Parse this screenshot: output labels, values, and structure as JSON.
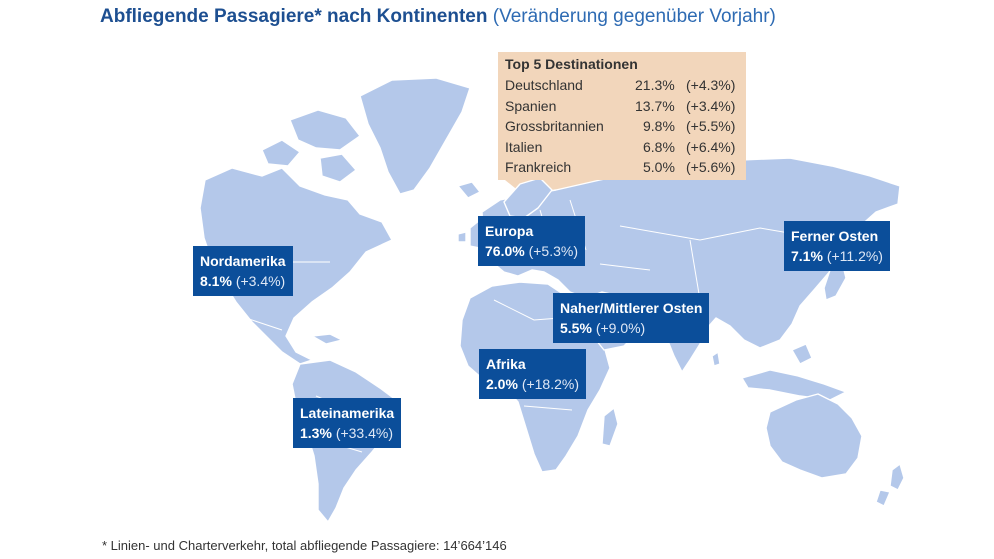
{
  "title": {
    "main": "Abfliegende Passagiere* nach Kontinenten",
    "sub": "(Veränderung gegenüber Vorjahr)"
  },
  "top5": {
    "heading": "Top 5 Destinationen",
    "rows": [
      {
        "country": "Deutschland",
        "share": "21.3%",
        "change": "(+4.3%)"
      },
      {
        "country": "Spanien",
        "share": "13.7%",
        "change": "(+3.4%)"
      },
      {
        "country": "Grossbritannien",
        "share": "9.8%",
        "change": "(+5.5%)"
      },
      {
        "country": "Italien",
        "share": "6.8%",
        "change": "(+6.4%)"
      },
      {
        "country": "Frankreich",
        "share": "5.0%",
        "change": "(+5.6%)"
      }
    ]
  },
  "regions": {
    "europa": {
      "name": "Europa",
      "share": "76.0%",
      "change": "(+5.3%)"
    },
    "nordamerika": {
      "name": "Nordamerika",
      "share": "8.1%",
      "change": "(+3.4%)"
    },
    "ferner_osten": {
      "name": "Ferner Osten",
      "share": "7.1%",
      "change": "(+11.2%)"
    },
    "naher_osten": {
      "name": "Naher/Mittlerer Osten",
      "share": "5.5%",
      "change": "(+9.0%)"
    },
    "afrika": {
      "name": "Afrika",
      "share": "2.0%",
      "change": "(+18.2%)"
    },
    "lateinamerika": {
      "name": "Lateinamerika",
      "share": "1.3%",
      "change": "(+33.4%)"
    }
  },
  "footnote": "* Linien- und Charterverkehr, total abfliegende Passagiere: 14’664’146",
  "colors": {
    "land": "#b4c8ea",
    "label_box": "#0b4e9a",
    "callout": "#f2d6bb",
    "title": "#1d4f91"
  }
}
